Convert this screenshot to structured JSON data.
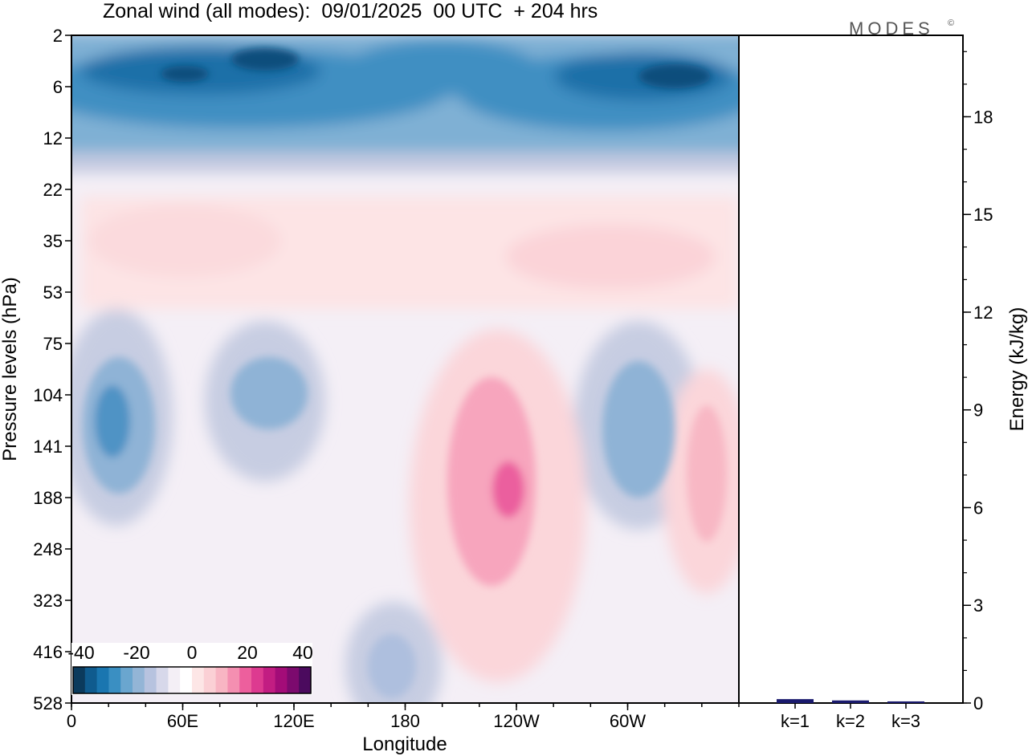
{
  "chart_data": [
    {
      "type": "heatmap",
      "title": "Zonal wind (all modes):  09/01/2025  00 UTC  + 204 hrs",
      "xlabel": "Longitude",
      "ylabel": "Pressure levels (hPa)",
      "x_ticks": [
        "0",
        "60E",
        "120E",
        "180",
        "120W",
        "60W"
      ],
      "x_tick_degrees": [
        0,
        60,
        120,
        180,
        240,
        300
      ],
      "xlim": [
        0,
        360
      ],
      "y_ticks": [
        "2",
        "6",
        "12",
        "22",
        "35",
        "53",
        "75",
        "104",
        "141",
        "188",
        "248",
        "323",
        "416",
        "528"
      ],
      "y_axis": "pressure levels, top = 2 hPa, bottom = 528 hPa",
      "colorbar": {
        "ticks": [
          "-40",
          "-20",
          "0",
          "20",
          "40"
        ],
        "range": [
          -40,
          40
        ],
        "step": 5,
        "colors": [
          "#0b3a5c",
          "#0f5b8e",
          "#1a76b0",
          "#3a8fc2",
          "#6aa6cf",
          "#93b5d6",
          "#b7c3df",
          "#d7d8ea",
          "#f4eff6",
          "#ffffff",
          "#fde6e6",
          "#fbd0d5",
          "#f8b5c3",
          "#f48fb1",
          "#ed5f9d",
          "#dd3a90",
          "#c21d82",
          "#a30c78",
          "#7c0a6e",
          "#4b0a5e"
        ]
      },
      "features": [
        {
          "name": "stratospheric easterly band",
          "lon": [
            0,
            360
          ],
          "p": [
            2,
            18
          ],
          "u": -22
        },
        {
          "name": "easterly core",
          "lon": [
            40,
            130
          ],
          "p": [
            4,
            7
          ],
          "u": -40
        },
        {
          "name": "easterly core",
          "lon": [
            270,
            335
          ],
          "p": [
            5,
            8
          ],
          "u": -40
        },
        {
          "name": "westerly band",
          "lon": [
            0,
            360
          ],
          "p": [
            22,
            75
          ],
          "u": 8
        },
        {
          "name": "easterly cell",
          "lon": [
            5,
            45
          ],
          "p": [
            75,
            260
          ],
          "u": -20
        },
        {
          "name": "easterly cell",
          "lon": [
            80,
            130
          ],
          "p": [
            85,
            230
          ],
          "u": -15
        },
        {
          "name": "westerly jet",
          "lon": [
            200,
            250
          ],
          "p": [
            85,
            450
          ],
          "u": 25
        },
        {
          "name": "easterly cell",
          "lon": [
            275,
            330
          ],
          "p": [
            85,
            330
          ],
          "u": -18
        },
        {
          "name": "westerly cell",
          "lon": [
            330,
            358
          ],
          "p": [
            110,
            330
          ],
          "u": 15
        },
        {
          "name": "easterly cell",
          "lon": [
            150,
            185
          ],
          "p": [
            330,
            528
          ],
          "u": -10
        }
      ]
    },
    {
      "type": "bar",
      "categories": [
        "k=1",
        "k=2",
        "k=3"
      ],
      "values": [
        0.12,
        0.08,
        0.05
      ],
      "ylabel": "Energy (kJ/kg)",
      "y_ticks": [
        "0",
        "3",
        "6",
        "9",
        "12",
        "15",
        "18"
      ],
      "ylim": [
        0,
        20.5
      ],
      "bar_color": "#1a1a6e"
    }
  ],
  "logo": "MODES",
  "logo_mark": "©"
}
